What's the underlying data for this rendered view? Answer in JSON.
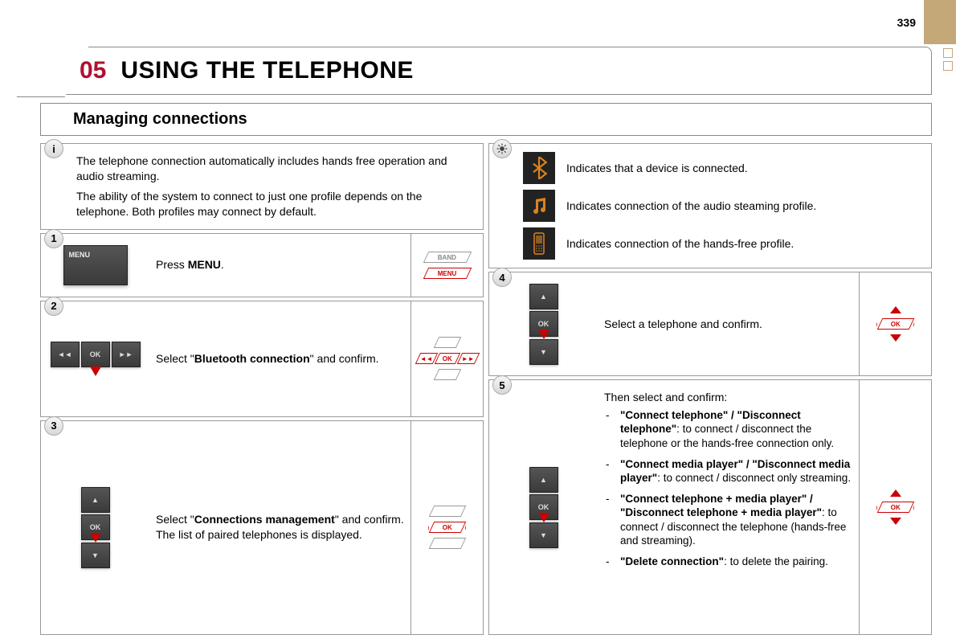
{
  "page_number": "339",
  "title_number": "05",
  "title": "USING THE TELEPHONE",
  "subtitle": "Managing connections",
  "colors": {
    "accent_red": "#b01030",
    "button_dark": "#3f3f3f",
    "icon_orange": "#d9821e",
    "tan": "#c4a878",
    "border_grey": "#999999"
  },
  "left": {
    "info": {
      "p1": "The telephone connection automatically includes hands free operation and audio streaming.",
      "p2": "The ability of the system to connect to just one profile depends on the telephone. Both profiles may connect by default."
    },
    "step1": {
      "num": "1",
      "text_pre": "Press ",
      "text_bold": "MENU",
      "text_post": ".",
      "btn_label": "MENU",
      "ind_top": "BAND",
      "ind_bottom": "MENU"
    },
    "step2": {
      "num": "2",
      "text_pre": "Select \"",
      "text_bold": "Bluetooth connection",
      "text_post": "\" and confirm.",
      "btn_left": "◄◄",
      "btn_mid": "OK",
      "btn_right": "►►",
      "ind_left": "◄◄",
      "ind_mid": "OK",
      "ind_right": "►►"
    },
    "step3": {
      "num": "3",
      "text_pre": "Select \"",
      "text_bold": "Connections management",
      "text_post": "\" and confirm. The list of paired telephones is displayed.",
      "btn_up": "▲",
      "btn_mid": "OK",
      "btn_dn": "▼",
      "ind_mid": "OK"
    }
  },
  "right": {
    "legend": {
      "bluetooth": "Indicates that a device is connected.",
      "audio": "Indicates connection of the audio steaming profile.",
      "phone": "Indicates connection of the hands-free profile."
    },
    "step4": {
      "num": "4",
      "text": "Select a telephone and confirm.",
      "btn_up": "▲",
      "btn_mid": "OK",
      "btn_dn": "▼",
      "ind_mid": "OK"
    },
    "step5": {
      "num": "5",
      "intro": "Then select and confirm:",
      "btn_up": "▲",
      "btn_mid": "OK",
      "btn_dn": "▼",
      "ind_mid": "OK",
      "options": [
        {
          "b": "\"Connect telephone\" / \"Disconnect telephone\"",
          "t": ": to connect / disconnect the telephone or the hands-free connection only."
        },
        {
          "b": "\"Connect media player\" / \"Disconnect media player\"",
          "t": ": to connect / disconnect only streaming."
        },
        {
          "b": "\"Connect telephone + media player\" / \"Disconnect telephone + media player\"",
          "t": ": to connect / disconnect the telephone (hands-free and streaming)."
        },
        {
          "b": "\"Delete connection\"",
          "t": ": to delete the pairing."
        }
      ]
    }
  }
}
